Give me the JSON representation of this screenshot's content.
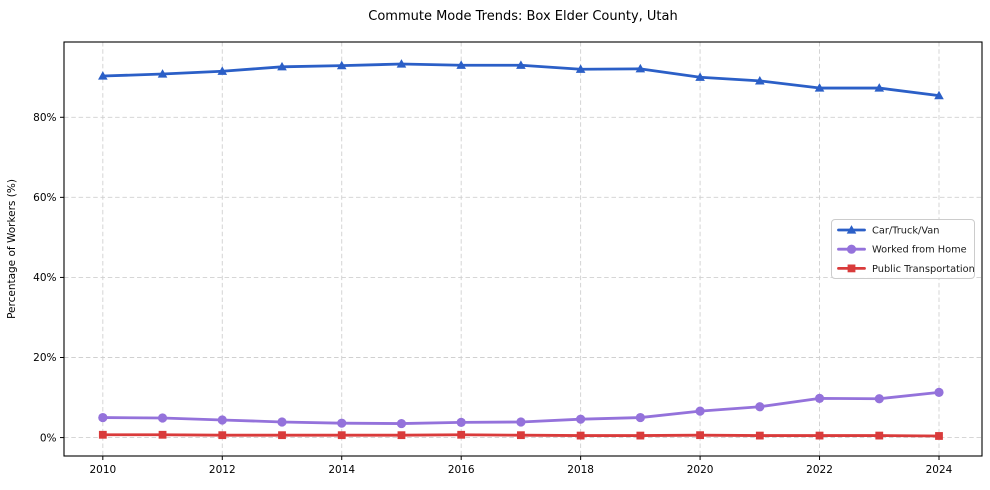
{
  "chart_data": {
    "type": "line",
    "title": "Commute Mode Trends: Box Elder County, Utah",
    "xlabel": "",
    "ylabel": "Percentage of Workers (%)",
    "x": [
      2010,
      2011,
      2012,
      2013,
      2014,
      2015,
      2016,
      2017,
      2018,
      2019,
      2020,
      2021,
      2022,
      2023,
      2024
    ],
    "series": [
      {
        "name": "Car/Truck/Van",
        "color": "#2b5fc7",
        "marker": "triangle",
        "values": [
          90.3,
          90.8,
          91.5,
          92.6,
          92.9,
          93.3,
          93.0,
          93.0,
          92.0,
          92.1,
          90.0,
          89.1,
          87.3,
          87.3,
          85.4
        ]
      },
      {
        "name": "Worked from Home",
        "color": "#9472db",
        "marker": "circle",
        "values": [
          5.0,
          4.9,
          4.4,
          3.9,
          3.6,
          3.5,
          3.8,
          3.9,
          4.6,
          5.0,
          6.6,
          7.7,
          9.8,
          9.7,
          11.3
        ]
      },
      {
        "name": "Public Transportation",
        "color": "#d93b3b",
        "marker": "square",
        "values": [
          0.7,
          0.7,
          0.6,
          0.6,
          0.6,
          0.6,
          0.7,
          0.6,
          0.5,
          0.5,
          0.6,
          0.5,
          0.5,
          0.5,
          0.4
        ]
      }
    ],
    "xlim": [
      2009.35,
      2024.72
    ],
    "ylim": [
      -4.6,
      98.8
    ],
    "xticks": {
      "values": [
        2010,
        2012,
        2014,
        2016,
        2018,
        2020,
        2022,
        2024
      ],
      "labels": [
        "2010",
        "2012",
        "2014",
        "2016",
        "2018",
        "2020",
        "2022",
        "2024"
      ]
    },
    "yticks": {
      "values": [
        0,
        20,
        40,
        60,
        80
      ],
      "labels": [
        "0%",
        "20%",
        "40%",
        "60%",
        "80%"
      ]
    },
    "grid": true,
    "legend_position": "center right"
  },
  "style": {
    "grid_color": "#d0d0d0",
    "spine_color": "#000000",
    "background": "#ffffff",
    "legend_border": "#cccccc"
  }
}
